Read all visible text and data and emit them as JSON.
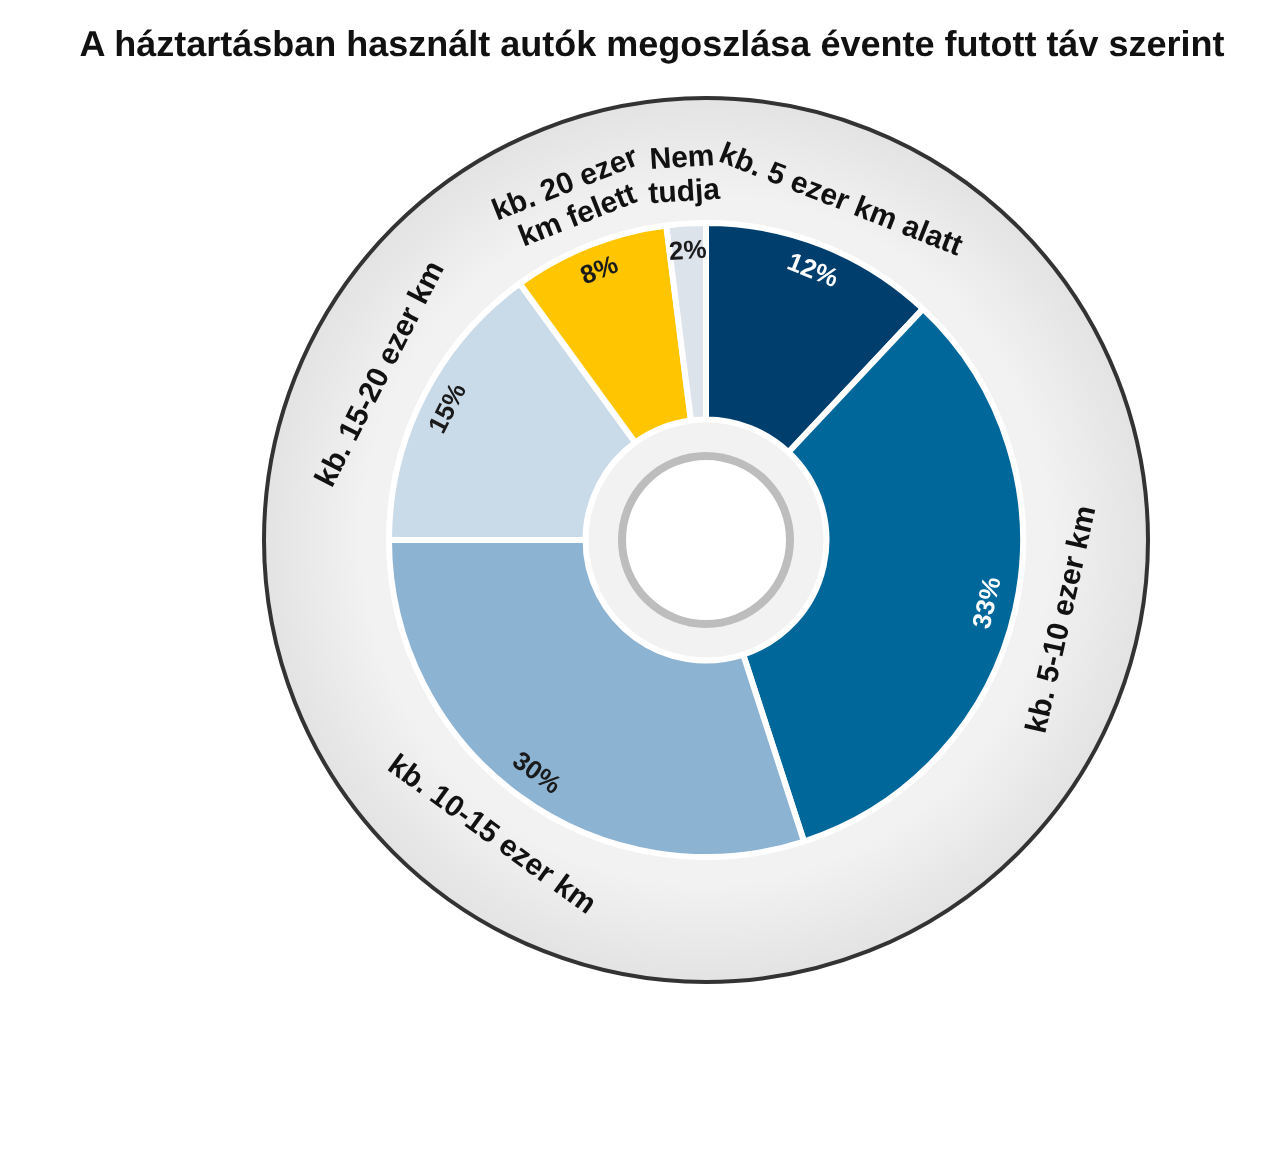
{
  "chart_data": {
    "type": "donut",
    "title": "A háztartásban használt autók megoszlása évente futott táv szerint",
    "categories": [
      "kb. 5 ezer km alatt",
      "kb. 5-10 ezer km",
      "kb. 10-15 ezer km",
      "kb. 15-20 ezer km",
      "kb. 20 ezer km felett",
      "Nem tudja"
    ],
    "values": [
      12,
      33,
      30,
      15,
      8,
      2
    ],
    "value_labels": [
      "12%",
      "33%",
      "30%",
      "15%",
      "8%",
      "2%"
    ],
    "colors": [
      "#003e6e",
      "#00679b",
      "#8cb3d2",
      "#c9dae9",
      "#ffc600",
      "#dde3ea"
    ],
    "legend": false
  }
}
